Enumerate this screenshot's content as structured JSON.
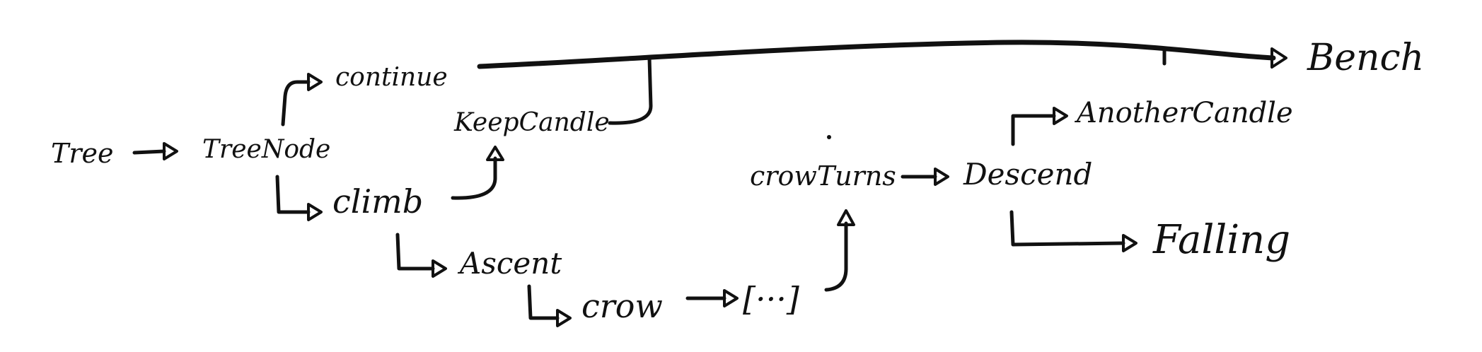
{
  "nodes": {
    "tree": "Tree",
    "tree_node": "TreeNode",
    "continue": "continue",
    "bench": "Bench",
    "keep_candle": "KeepCandle",
    "climb": "climb",
    "ascent": "Ascent",
    "crow": "crow",
    "ellipsis": "[···]",
    "crow_turns": "crowTurns",
    "descend": "Descend",
    "another_candle": "AnotherCandle",
    "falling": "Falling"
  },
  "edges": [
    {
      "from": "tree",
      "to": "tree_node"
    },
    {
      "from": "tree_node",
      "to": "continue"
    },
    {
      "from": "tree_node",
      "to": "climb"
    },
    {
      "from": "climb",
      "to": "keep_candle"
    },
    {
      "from": "climb",
      "to": "ascent"
    },
    {
      "from": "ascent",
      "to": "crow"
    },
    {
      "from": "crow",
      "to": "ellipsis"
    },
    {
      "from": "ellipsis",
      "to": "crow_turns"
    },
    {
      "from": "crow_turns",
      "to": "descend"
    },
    {
      "from": "descend",
      "to": "another_candle"
    },
    {
      "from": "descend",
      "to": "falling"
    },
    {
      "from": "continue",
      "to": "bench"
    },
    {
      "from": "keep_candle",
      "to": "bench"
    },
    {
      "from": "another_candle",
      "to": "bench"
    }
  ]
}
